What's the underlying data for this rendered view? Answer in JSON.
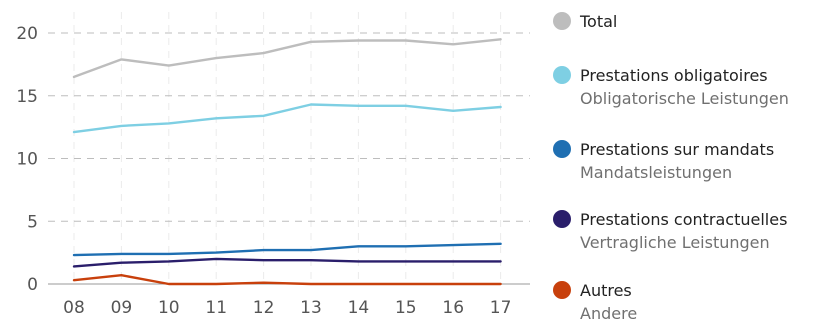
{
  "chart_data": {
    "type": "line",
    "categories": [
      "08",
      "09",
      "10",
      "11",
      "12",
      "13",
      "14",
      "15",
      "16",
      "17"
    ],
    "ylim": [
      0,
      20
    ],
    "yticks": [
      "0",
      "5",
      "10",
      "15",
      "20"
    ],
    "grid": true,
    "legend_position": "right",
    "series": [
      {
        "name": "Total",
        "subname": "",
        "color": "#bdbdbd",
        "values": [
          16.5,
          17.9,
          17.4,
          18.0,
          18.4,
          19.3,
          19.4,
          19.4,
          19.1,
          19.5
        ]
      },
      {
        "name": "Prestations obligatoires",
        "subname": "Obligatorische Leistungen",
        "color": "#7ecfe3",
        "values": [
          12.1,
          12.6,
          12.8,
          13.2,
          13.4,
          14.3,
          14.2,
          14.2,
          13.8,
          14.1
        ]
      },
      {
        "name": "Prestations sur mandats",
        "subname": "Mandatsleistungen",
        "color": "#1f6fb2",
        "values": [
          2.3,
          2.4,
          2.4,
          2.5,
          2.7,
          2.7,
          3.0,
          3.0,
          3.1,
          3.2
        ]
      },
      {
        "name": "Prestations contractuelles",
        "subname": "Vertragliche Leistungen",
        "color": "#2a1e6b",
        "values": [
          1.4,
          1.7,
          1.8,
          2.0,
          1.9,
          1.9,
          1.8,
          1.8,
          1.8,
          1.8
        ]
      },
      {
        "name": "Autres",
        "subname": "Andere",
        "color": "#c8400c",
        "values": [
          0.3,
          0.7,
          0.0,
          0.0,
          0.1,
          0.0,
          0.0,
          0.0,
          0.0,
          0.0
        ]
      }
    ]
  }
}
